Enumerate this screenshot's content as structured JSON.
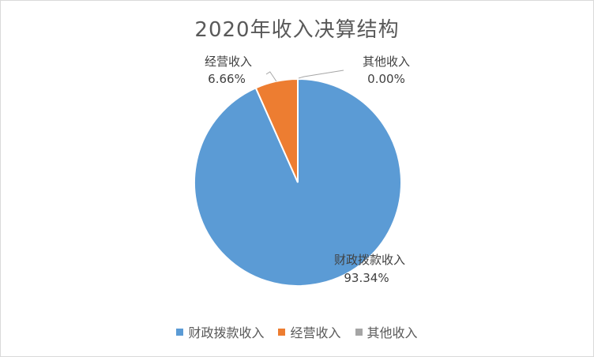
{
  "chart_data": {
    "type": "pie",
    "title": "2020年收入决算结构",
    "categories": [
      "财政拨款收入",
      "经营收入",
      "其他收入"
    ],
    "values": [
      93.34,
      6.66,
      0.0
    ],
    "value_labels": [
      "93.34%",
      "6.66%",
      "0.00%"
    ],
    "colors": [
      "#5b9bd5",
      "#ed7d31",
      "#a5a5a5"
    ],
    "legend_position": "bottom"
  }
}
